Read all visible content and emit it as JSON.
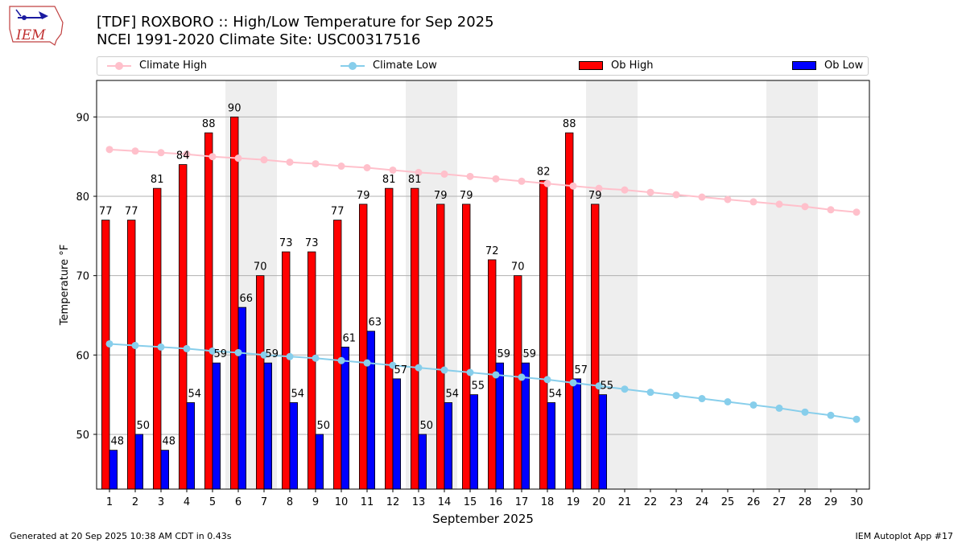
{
  "header": {
    "title_line1": "[TDF] ROXBORO :: High/Low Temperature for Sep 2025",
    "title_line2": "NCEI 1991-2020 Climate Site: USC00317516",
    "logo_text": "IEM"
  },
  "legend": {
    "climate_high": "Climate High",
    "climate_low": "Climate Low",
    "ob_high": "Ob High",
    "ob_low": "Ob Low",
    "position": "top"
  },
  "footer": {
    "generated": "Generated at 20 Sep 2025 10:38 AM CDT in 0.43s",
    "app": "IEM Autoplot App #17"
  },
  "colors": {
    "ob_high": "#ff0000",
    "ob_low": "#0000ff",
    "climate_high": "#ffc0cb",
    "climate_low": "#87ceeb",
    "weekend_shade": "#eeeeee",
    "grid": "#b0b0b0"
  },
  "chart_data": {
    "type": "bar",
    "xlabel": "September 2025",
    "ylabel": "Temperature °F",
    "ylim": [
      43.1,
      94.6
    ],
    "yticks": [
      50,
      60,
      70,
      80,
      90
    ],
    "grid": true,
    "weekend_days": [
      6,
      7,
      13,
      14,
      20,
      21,
      27,
      28
    ],
    "days": [
      1,
      2,
      3,
      4,
      5,
      6,
      7,
      8,
      9,
      10,
      11,
      12,
      13,
      14,
      15,
      16,
      17,
      18,
      19,
      20,
      21,
      22,
      23,
      24,
      25,
      26,
      27,
      28,
      29,
      30
    ],
    "series": [
      {
        "name": "Ob High",
        "kind": "bar",
        "values": [
          77,
          77,
          81,
          84,
          88,
          90,
          70,
          73,
          73,
          77,
          79,
          81,
          81,
          79,
          79,
          72,
          70,
          82,
          88,
          79
        ]
      },
      {
        "name": "Ob Low",
        "kind": "bar",
        "values": [
          48,
          50,
          48,
          54,
          59,
          66,
          59,
          54,
          50,
          61,
          63,
          57,
          50,
          54,
          55,
          59,
          59,
          54,
          57,
          55
        ]
      },
      {
        "name": "Climate High",
        "kind": "line",
        "values": [
          85.9,
          85.7,
          85.5,
          85.3,
          85.0,
          84.8,
          84.6,
          84.3,
          84.1,
          83.8,
          83.6,
          83.3,
          83.0,
          82.8,
          82.5,
          82.2,
          81.9,
          81.6,
          81.3,
          81.0,
          80.8,
          80.5,
          80.2,
          79.9,
          79.6,
          79.3,
          79.0,
          78.7,
          78.3,
          78.0
        ]
      },
      {
        "name": "Climate Low",
        "kind": "line",
        "values": [
          61.4,
          61.2,
          61.0,
          60.8,
          60.5,
          60.3,
          60.0,
          59.8,
          59.6,
          59.3,
          59.0,
          58.7,
          58.4,
          58.1,
          57.8,
          57.5,
          57.2,
          56.9,
          56.5,
          56.1,
          55.7,
          55.3,
          54.9,
          54.5,
          54.1,
          53.7,
          53.3,
          52.8,
          52.4,
          51.9
        ]
      }
    ]
  }
}
